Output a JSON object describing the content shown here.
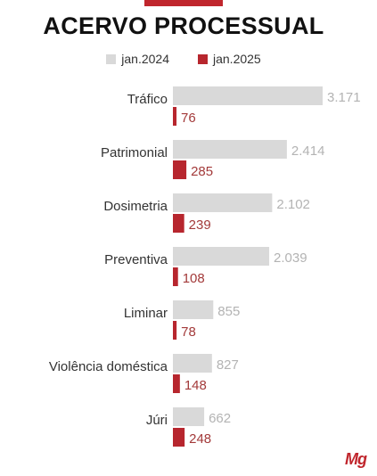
{
  "title": "ACERVO PROCESSUAL",
  "logo_text": "Mg",
  "colors": {
    "series_2024": "#d9d9d9",
    "series_2025": "#b7262e",
    "label_2024": "#b3b3b3",
    "label_2025": "#a33a3a"
  },
  "chart_data": {
    "type": "bar",
    "orientation": "horizontal",
    "title": "ACERVO PROCESSUAL",
    "legend_position": "top",
    "categories": [
      "Tráfico",
      "Patrimonial",
      "Dosimetria",
      "Preventiva",
      "Liminar",
      "Violência doméstica",
      "Júri"
    ],
    "series": [
      {
        "name": "jan.2024",
        "values": [
          3171,
          2414,
          2102,
          2039,
          855,
          827,
          662
        ],
        "labels": [
          "3.171",
          "2.414",
          "2.102",
          "2.039",
          "855",
          "827",
          "662"
        ]
      },
      {
        "name": "jan.2025",
        "values": [
          76,
          285,
          239,
          108,
          78,
          148,
          248
        ],
        "labels": [
          "76",
          "285",
          "239",
          "108",
          "78",
          "148",
          "248"
        ]
      }
    ],
    "xlim": [
      0,
      3171
    ],
    "grid": false
  }
}
